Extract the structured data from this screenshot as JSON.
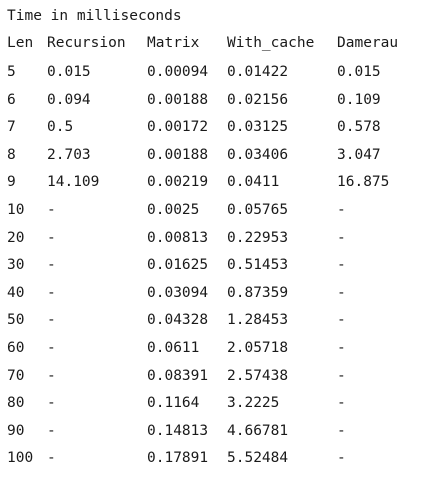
{
  "console": {
    "title": "Time in milliseconds",
    "headers": [
      "Len",
      "Recursion",
      "Matrix",
      "With_cache",
      "Damerau"
    ],
    "rows": [
      [
        "5",
        "0.015",
        "0.00094",
        "0.01422",
        "0.015"
      ],
      [
        "6",
        "0.094",
        "0.00188",
        "0.02156",
        "0.109"
      ],
      [
        "7",
        "0.5",
        "0.00172",
        "0.03125",
        "0.578"
      ],
      [
        "8",
        "2.703",
        "0.00188",
        "0.03406",
        "3.047"
      ],
      [
        "9",
        "14.109",
        "0.00219",
        "0.0411",
        "16.875"
      ],
      [
        "10",
        "-",
        "0.0025",
        "0.05765",
        "-"
      ],
      [
        "20",
        "-",
        "0.00813",
        "0.22953",
        "-"
      ],
      [
        "30",
        "-",
        "0.01625",
        "0.51453",
        "-"
      ],
      [
        "40",
        "-",
        "0.03094",
        "0.87359",
        "-"
      ],
      [
        "50",
        "-",
        "0.04328",
        "1.28453",
        "-"
      ],
      [
        "60",
        "-",
        "0.0611",
        "2.05718",
        "-"
      ],
      [
        "70",
        "-",
        "0.08391",
        "2.57438",
        "-"
      ],
      [
        "80",
        "-",
        "0.1164",
        "3.2225",
        "-"
      ],
      [
        "90",
        "-",
        "0.14813",
        "4.66781",
        "-"
      ],
      [
        "100",
        "-",
        "0.17891",
        "5.52484",
        "-"
      ]
    ]
  }
}
